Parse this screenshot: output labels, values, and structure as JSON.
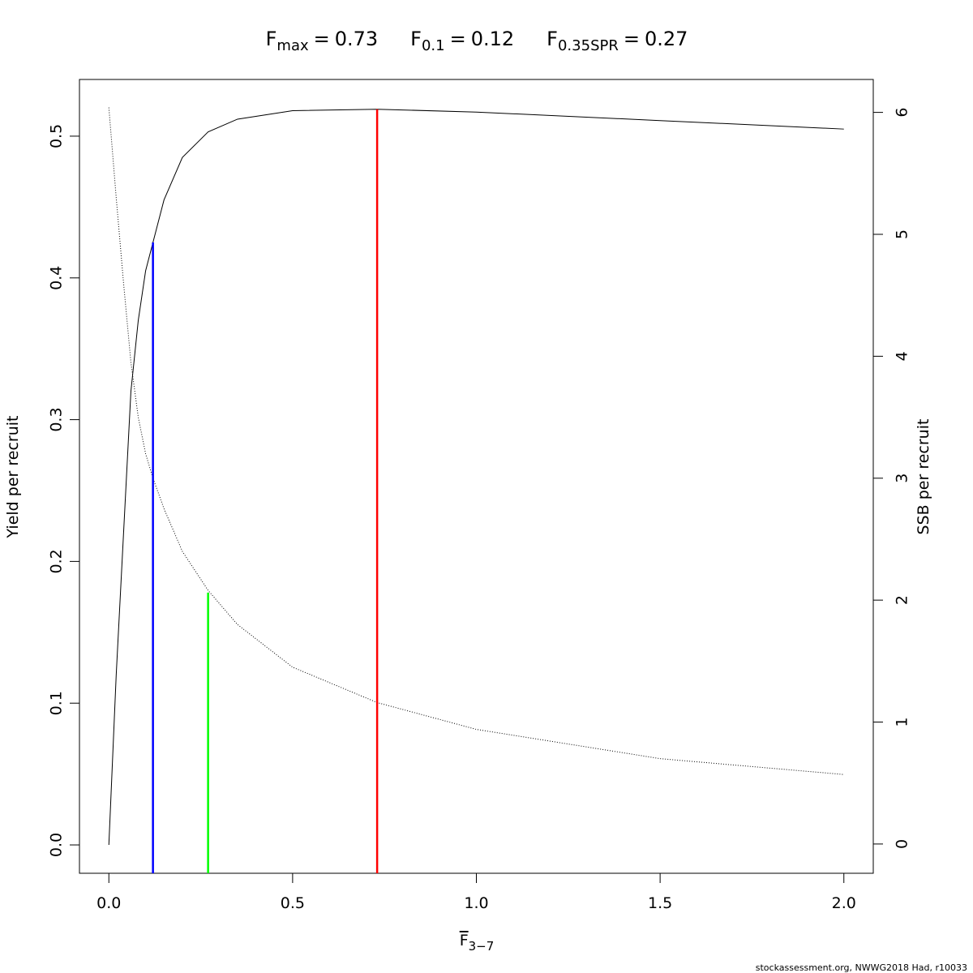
{
  "chart_data": {
    "type": "line",
    "reference_lines": [
      {
        "symbol": "F",
        "subscript": "max",
        "relation": "=",
        "value": 0.73,
        "ymax": 0.519,
        "color": "#ff0000"
      },
      {
        "symbol": "F",
        "subscript": "0.1",
        "relation": "=",
        "value": 0.12,
        "ymax": 0.425,
        "color": "#0000ff"
      },
      {
        "symbol": "F",
        "subscript": "0.35SPR",
        "relation": "=",
        "value": 0.27,
        "ymax": 0.178,
        "color": "#00ff00"
      }
    ],
    "xlabel": {
      "text": "F",
      "subscript": "3−7"
    },
    "ylabel": "Yield per recruit",
    "y2label": "SSB per recruit",
    "footnote": "stockassessment.org, NWWG2018 Had, r10033",
    "x": [
      0,
      0.02,
      0.04,
      0.06,
      0.08,
      0.1,
      0.12,
      0.15,
      0.2,
      0.27,
      0.35,
      0.5,
      0.73,
      1.0,
      1.5,
      2.0
    ],
    "series": [
      {
        "color": "#000000",
        "style": "solid",
        "values": [
          0,
          0.12,
          0.22,
          0.32,
          0.37,
          0.405,
          0.425,
          0.455,
          0.485,
          0.503,
          0.512,
          0.518,
          0.519,
          0.517,
          0.511,
          0.505
        ]
      },
      {
        "color": "#000000",
        "style": "dotted",
        "axis": "y2",
        "values": [
          6.04,
          5.3,
          4.6,
          3.95,
          3.5,
          3.2,
          3.0,
          2.75,
          2.4,
          2.08,
          1.8,
          1.45,
          1.16,
          0.94,
          0.7,
          0.57
        ]
      }
    ],
    "xlim": [
      -0.08,
      2.08
    ],
    "xticks": [
      {
        "value": 0,
        "label": "0.0"
      },
      0.5,
      {
        "value": 1,
        "label": "1.0"
      },
      1.5,
      {
        "value": 2,
        "label": "2.0"
      }
    ],
    "ylim": [
      -0.02,
      0.54
    ],
    "yticks": [
      {
        "value": 0,
        "label": "0.0"
      },
      0.1,
      0.2,
      0.3,
      0.4,
      0.5
    ],
    "y2lim": [
      -0.24,
      6.27
    ],
    "y2ticks": [
      0,
      1,
      2,
      3,
      4,
      5,
      6
    ]
  }
}
